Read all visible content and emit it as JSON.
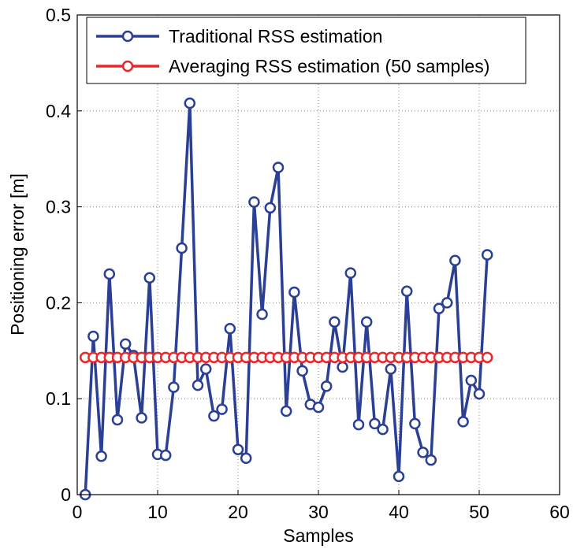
{
  "chart_data": {
    "type": "line",
    "xlabel": "Samples",
    "ylabel": "Positioning error [m]",
    "x": [
      1,
      2,
      3,
      4,
      5,
      6,
      7,
      8,
      9,
      10,
      11,
      12,
      13,
      14,
      15,
      16,
      17,
      18,
      19,
      20,
      21,
      22,
      23,
      24,
      25,
      26,
      27,
      28,
      29,
      30,
      31,
      32,
      33,
      34,
      35,
      36,
      37,
      38,
      39,
      40,
      41,
      42,
      43,
      44,
      45,
      46,
      47,
      48,
      49,
      50,
      51
    ],
    "series": [
      {
        "name": "Traditional RSS estimation",
        "color": "#2b3f95",
        "values": [
          0.0,
          0.165,
          0.04,
          0.23,
          0.078,
          0.157,
          0.145,
          0.08,
          0.226,
          0.042,
          0.041,
          0.112,
          0.257,
          0.408,
          0.114,
          0.131,
          0.082,
          0.089,
          0.173,
          0.047,
          0.038,
          0.305,
          0.188,
          0.299,
          0.341,
          0.087,
          0.211,
          0.129,
          0.094,
          0.091,
          0.113,
          0.18,
          0.133,
          0.231,
          0.073,
          0.18,
          0.074,
          0.068,
          0.131,
          0.019,
          0.212,
          0.074,
          0.044,
          0.036,
          0.194,
          0.2,
          0.244,
          0.076,
          0.119,
          0.105,
          0.25
        ]
      },
      {
        "name": "Averaging RSS estimation (50 samples)",
        "color": "#e8292b",
        "values": [
          0.143,
          0.143,
          0.143,
          0.143,
          0.143,
          0.143,
          0.143,
          0.143,
          0.143,
          0.143,
          0.143,
          0.143,
          0.143,
          0.143,
          0.143,
          0.143,
          0.143,
          0.143,
          0.143,
          0.143,
          0.143,
          0.143,
          0.143,
          0.143,
          0.143,
          0.143,
          0.143,
          0.143,
          0.143,
          0.143,
          0.143,
          0.143,
          0.143,
          0.143,
          0.143,
          0.143,
          0.143,
          0.143,
          0.143,
          0.143,
          0.143,
          0.143,
          0.143,
          0.143,
          0.143,
          0.143,
          0.143,
          0.143,
          0.143,
          0.143,
          0.143
        ]
      }
    ],
    "xlim": [
      0,
      60
    ],
    "xticks": [
      0,
      10,
      20,
      30,
      40,
      50,
      60
    ],
    "ylim": [
      0,
      0.5
    ],
    "yticks": [
      0,
      0.1,
      0.2,
      0.3,
      0.4,
      0.5
    ],
    "grid": true,
    "legend": "upper left"
  }
}
